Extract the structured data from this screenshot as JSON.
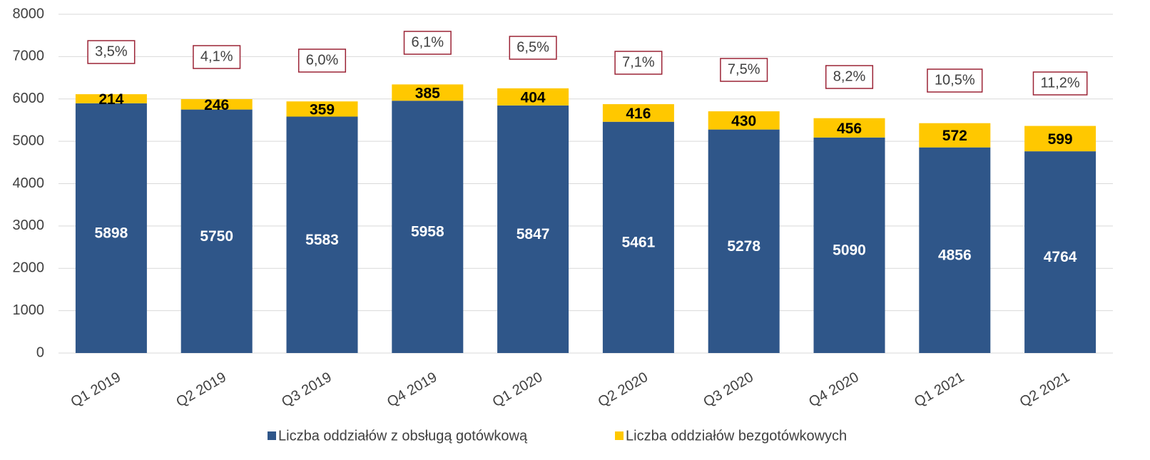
{
  "chart_data": {
    "type": "stacked_bar",
    "categories": [
      "Q1 2019",
      "Q2 2019",
      "Q3 2019",
      "Q4 2019",
      "Q1 2020",
      "Q2 2020",
      "Q3 2020",
      "Q4 2020",
      "Q1 2021",
      "Q2 2021"
    ],
    "series": [
      {
        "name": "Liczba oddziałów z obsługą gotówkową",
        "color": "#2f5689",
        "values": [
          5898,
          5750,
          5583,
          5958,
          5847,
          5461,
          5278,
          5090,
          4856,
          4764
        ]
      },
      {
        "name": "Liczba oddziałów bezgotówkowych",
        "color": "#ffc800",
        "values": [
          214,
          246,
          359,
          385,
          404,
          416,
          430,
          456,
          572,
          599
        ]
      }
    ],
    "annotations": [
      "3,5%",
      "4,1%",
      "6,0%",
      "6,1%",
      "6,5%",
      "7,1%",
      "7,5%",
      "8,2%",
      "10,5%",
      "11,2%"
    ],
    "ylim": [
      0,
      8000
    ],
    "yticks": [
      0,
      1000,
      2000,
      3000,
      4000,
      5000,
      6000,
      7000,
      8000
    ],
    "grid": true,
    "legend": "bottom"
  }
}
